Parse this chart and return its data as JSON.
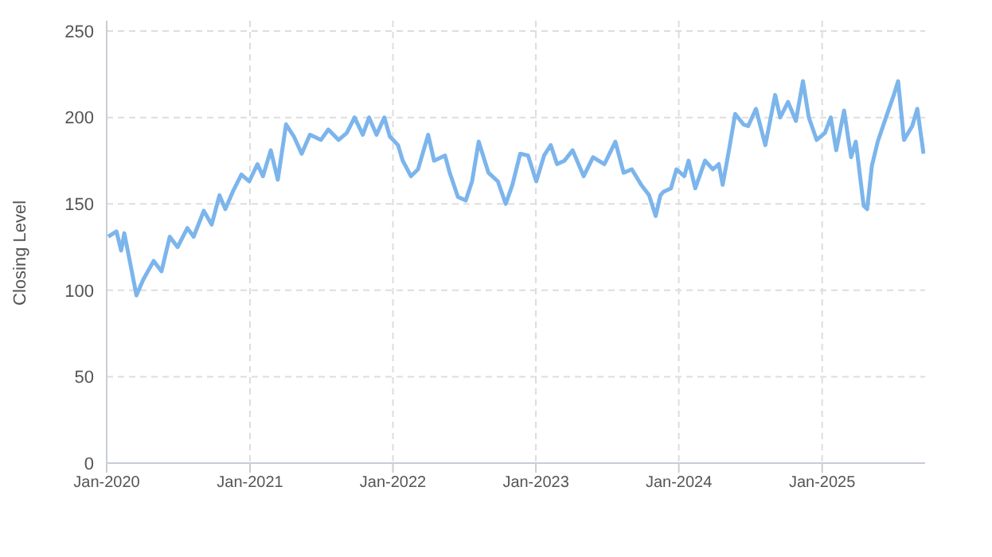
{
  "chart_data": {
    "type": "line",
    "ylabel": "Closing Level",
    "xlim": [
      "2020-01-01",
      "2025-09-21"
    ],
    "xticks": [
      {
        "value": "2020-01-01",
        "label": "Jan-2020"
      },
      {
        "value": "2021-01-01",
        "label": "Jan-2021"
      },
      {
        "value": "2022-01-01",
        "label": "Jan-2022"
      },
      {
        "value": "2023-01-01",
        "label": "Jan-2023"
      },
      {
        "value": "2024-01-01",
        "label": "Jan-2024"
      },
      {
        "value": "2025-01-01",
        "label": "Jan-2025"
      }
    ],
    "ylim": [
      0,
      256
    ],
    "yticks": [
      0,
      50,
      100,
      150,
      200,
      250
    ],
    "grid": true,
    "marker": "none",
    "line_style": "solid",
    "x": [
      "2020-01-05",
      "2020-01-26",
      "2020-02-07",
      "2020-02-15",
      "2020-02-29",
      "2020-03-17",
      "2020-04-03",
      "2020-04-30",
      "2020-05-20",
      "2020-06-10",
      "2020-06-30",
      "2020-07-25",
      "2020-08-10",
      "2020-09-05",
      "2020-09-25",
      "2020-10-15",
      "2020-10-30",
      "2020-11-20",
      "2020-12-10",
      "2020-12-30",
      "2021-01-20",
      "2021-02-03",
      "2021-02-23",
      "2021-03-13",
      "2021-04-03",
      "2021-04-23",
      "2021-05-13",
      "2021-06-03",
      "2021-07-01",
      "2021-07-20",
      "2021-08-15",
      "2021-09-05",
      "2021-09-25",
      "2021-10-16",
      "2021-11-01",
      "2021-11-20",
      "2021-12-10",
      "2021-12-24",
      "2022-01-14",
      "2022-01-26",
      "2022-02-16",
      "2022-03-06",
      "2022-04-01",
      "2022-04-16",
      "2022-05-14",
      "2022-05-26",
      "2022-06-16",
      "2022-07-06",
      "2022-07-22",
      "2022-08-08",
      "2022-09-02",
      "2022-09-26",
      "2022-10-16",
      "2022-11-02",
      "2022-11-22",
      "2022-12-12",
      "2023-01-02",
      "2023-01-22",
      "2023-02-08",
      "2023-02-24",
      "2023-03-15",
      "2023-04-05",
      "2023-05-03",
      "2023-05-27",
      "2023-06-25",
      "2023-07-23",
      "2023-08-13",
      "2023-09-03",
      "2023-09-27",
      "2023-10-17",
      "2023-11-03",
      "2023-11-15",
      "2023-11-23",
      "2023-12-12",
      "2023-12-26",
      "2024-01-15",
      "2024-01-26",
      "2024-02-12",
      "2024-03-08",
      "2024-03-28",
      "2024-04-12",
      "2024-04-22",
      "2024-05-08",
      "2024-05-24",
      "2024-06-14",
      "2024-06-26",
      "2024-07-16",
      "2024-08-09",
      "2024-09-03",
      "2024-09-16",
      "2024-10-06",
      "2024-10-26",
      "2024-11-13",
      "2024-11-28",
      "2024-12-18",
      "2025-01-08",
      "2025-01-23",
      "2025-02-06",
      "2025-02-26",
      "2025-03-16",
      "2025-03-28",
      "2025-04-17",
      "2025-04-26",
      "2025-05-08",
      "2025-05-23",
      "2025-06-13",
      "2025-07-03",
      "2025-07-14",
      "2025-07-29",
      "2025-08-19",
      "2025-09-01",
      "2025-09-17"
    ],
    "series": [
      {
        "color": "#7cb5ec",
        "values": [
          131,
          134,
          123,
          133,
          117,
          97,
          106,
          117,
          111,
          131,
          125,
          136,
          131,
          146,
          138,
          155,
          147,
          158,
          167,
          163,
          173,
          166,
          181,
          164,
          196,
          189,
          179,
          190,
          187,
          193,
          187,
          191,
          200,
          190,
          200,
          190,
          200,
          189,
          184,
          175,
          166,
          170,
          190,
          175,
          178,
          168,
          154,
          152,
          163,
          186,
          168,
          163,
          150,
          161,
          179,
          178,
          163,
          178,
          184,
          173,
          175,
          181,
          166,
          177,
          173,
          186,
          168,
          170,
          161,
          155,
          143,
          155,
          157,
          159,
          170,
          166,
          175,
          159,
          175,
          170,
          173,
          161,
          181,
          202,
          196,
          195,
          205,
          184,
          213,
          200,
          209,
          198,
          221,
          200,
          187,
          191,
          200,
          181,
          204,
          177,
          186,
          149,
          147,
          172,
          186,
          200,
          213,
          221,
          187,
          195,
          205,
          179
        ]
      }
    ]
  }
}
